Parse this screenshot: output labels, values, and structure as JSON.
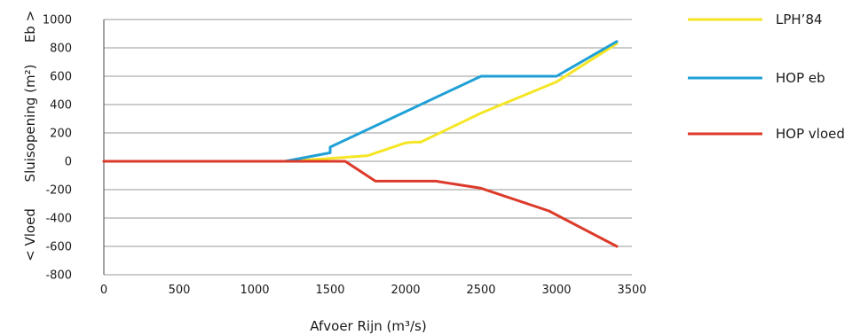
{
  "chart_data": {
    "type": "line",
    "xlabel": "Afvoer Rijn (m³/s)",
    "ylabel": "Sluisopening (m²)",
    "ylabel_top": "Eb >",
    "ylabel_bottom": "< Vloed",
    "xlim": [
      0,
      3500
    ],
    "ylim": [
      -800,
      1000
    ],
    "xticks": [
      0,
      500,
      1000,
      1500,
      2000,
      2500,
      3000,
      3500
    ],
    "yticks": [
      -800,
      -600,
      -400,
      -200,
      0,
      200,
      400,
      600,
      800,
      1000
    ],
    "xtick_labels": [
      "0",
      "500",
      "1000",
      "1500",
      "2000",
      "2500",
      "3000",
      "3500"
    ],
    "ytick_labels": [
      "-800",
      "-600",
      "-400",
      "-200",
      "0",
      "200",
      "400",
      "600",
      "800",
      "1000"
    ],
    "grid": "horizontal",
    "legend_position": "right",
    "series": [
      {
        "name": "LPH’84",
        "color": "#f5e625",
        "x": [
          0,
          1200,
          1500,
          1750,
          2000,
          2050,
          2100,
          2500,
          3000,
          3400
        ],
        "y": [
          0,
          0,
          20,
          40,
          130,
          135,
          135,
          340,
          560,
          830
        ]
      },
      {
        "name": "HOP eb",
        "color": "#1fa0d6",
        "x": [
          0,
          1200,
          1500,
          1500,
          2500,
          3000,
          3400
        ],
        "y": [
          0,
          0,
          60,
          100,
          600,
          600,
          845
        ]
      },
      {
        "name": "HOP vloed",
        "color": "#dc3a2a",
        "x": [
          0,
          1200,
          1600,
          1800,
          2200,
          2500,
          2950,
          3400
        ],
        "y": [
          0,
          0,
          0,
          -140,
          -140,
          -190,
          -350,
          -600
        ]
      }
    ]
  }
}
